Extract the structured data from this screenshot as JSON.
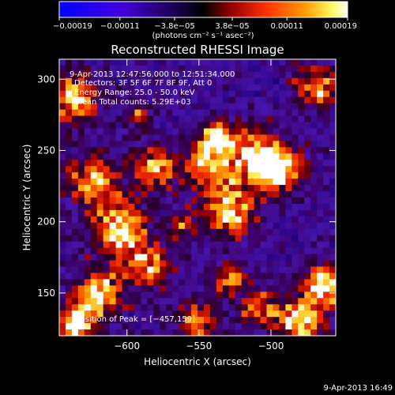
{
  "colorbar": {
    "ticks": [
      "-0.00019",
      "-0.00011",
      "−3.8e−05",
      "3.8e−05",
      "0.00011",
      "0.00019"
    ],
    "ticks_display": [
      "−0.00019",
      "−0.00011",
      "−3.8e−05",
      "3.8e−05",
      "0.00011",
      "0.00019"
    ],
    "tick_values": [
      -0.00019,
      -0.00011,
      -3.8e-05,
      3.8e-05,
      0.00011,
      0.00019
    ],
    "range": [
      -0.00019,
      0.00019
    ],
    "units_label": "(photons cm⁻² s⁻¹ asec⁻²)",
    "colors": [
      "#0000ff",
      "#4400dd",
      "#000000",
      "#990000",
      "#ff3300",
      "#ff9900",
      "#ffff66",
      "#ffffff"
    ]
  },
  "plot": {
    "title": "Reconstructed RHESSI Image",
    "xlabel": "Heliocentric X (arcsec)",
    "ylabel": "Heliocentric Y (arcsec)",
    "info_lines": [
      "9-Apr-2013 12:47:56.000 to 12:51:34.000",
      "Detectors: 3F 5F 6F 7F 8F 9F, Att 0",
      "Energy Range: 25.0 - 50.0 keV",
      "Clean     Total counts: 5.29E+03"
    ],
    "peak_label": "Position of Peak = [−457,159]"
  },
  "chart_data": {
    "type": "heatmap",
    "title": "Reconstructed RHESSI Image",
    "xlabel": "Heliocentric X (arcsec)",
    "ylabel": "Heliocentric Y (arcsec)",
    "xlim": [
      -647,
      -455
    ],
    "ylim": [
      120,
      314
    ],
    "x_ticks": [
      -600,
      -550,
      -500
    ],
    "x_tick_labels": [
      "−600",
      "−550",
      "−500"
    ],
    "y_ticks": [
      150,
      200,
      250,
      300
    ],
    "y_tick_labels": [
      "150",
      "200",
      "250",
      "300"
    ],
    "value_range": [
      -0.00019,
      0.00019
    ],
    "peak_position": [
      -457,
      159
    ]
  },
  "footer": {
    "timestamp": "9-Apr-2013 16:49"
  },
  "colors": {
    "background": "#000000",
    "text": "#ffffff"
  }
}
